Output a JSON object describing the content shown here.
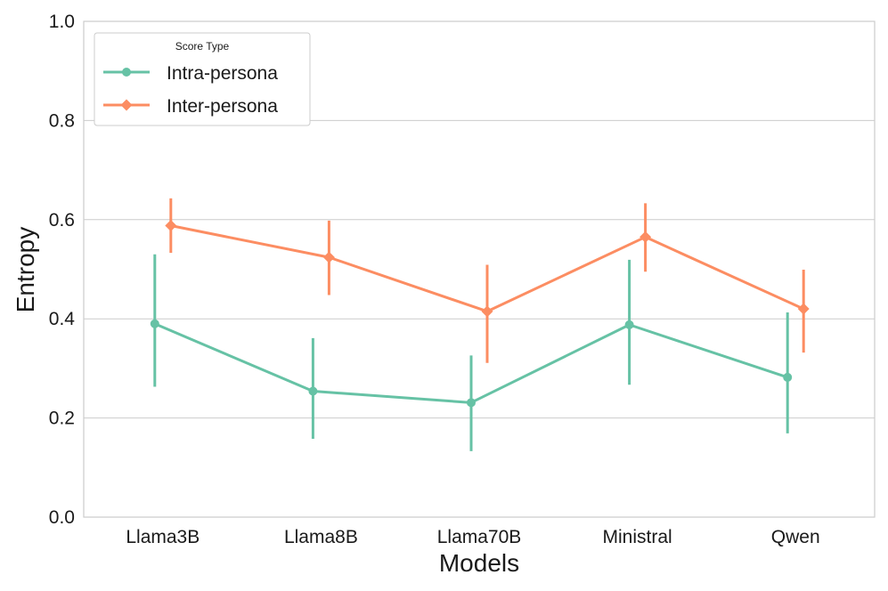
{
  "chart_data": {
    "type": "line",
    "xlabel": "Models",
    "ylabel": "Entropy",
    "ylim": [
      0.0,
      1.0
    ],
    "yticks": [
      "0.0",
      "0.2",
      "0.4",
      "0.6",
      "0.8",
      "1.0"
    ],
    "categories": [
      "Llama3B",
      "Llama8B",
      "Llama70B",
      "Ministral",
      "Qwen"
    ],
    "grid": "horizontal",
    "legend": {
      "title": "Score Type",
      "placement": "top-left"
    },
    "series": [
      {
        "name": "Intra-persona",
        "color": "#66c2a5",
        "marker": "circle",
        "values": [
          0.39,
          0.254,
          0.231,
          0.388,
          0.282
        ],
        "err_low": [
          0.263,
          0.158,
          0.133,
          0.267,
          0.169
        ],
        "err_high": [
          0.53,
          0.361,
          0.326,
          0.519,
          0.413
        ]
      },
      {
        "name": "Inter-persona",
        "color": "#fc8d62",
        "marker": "diamond",
        "values": [
          0.588,
          0.524,
          0.415,
          0.565,
          0.42
        ],
        "err_low": [
          0.533,
          0.448,
          0.311,
          0.495,
          0.332
        ],
        "err_high": [
          0.643,
          0.598,
          0.509,
          0.633,
          0.499
        ]
      }
    ]
  }
}
